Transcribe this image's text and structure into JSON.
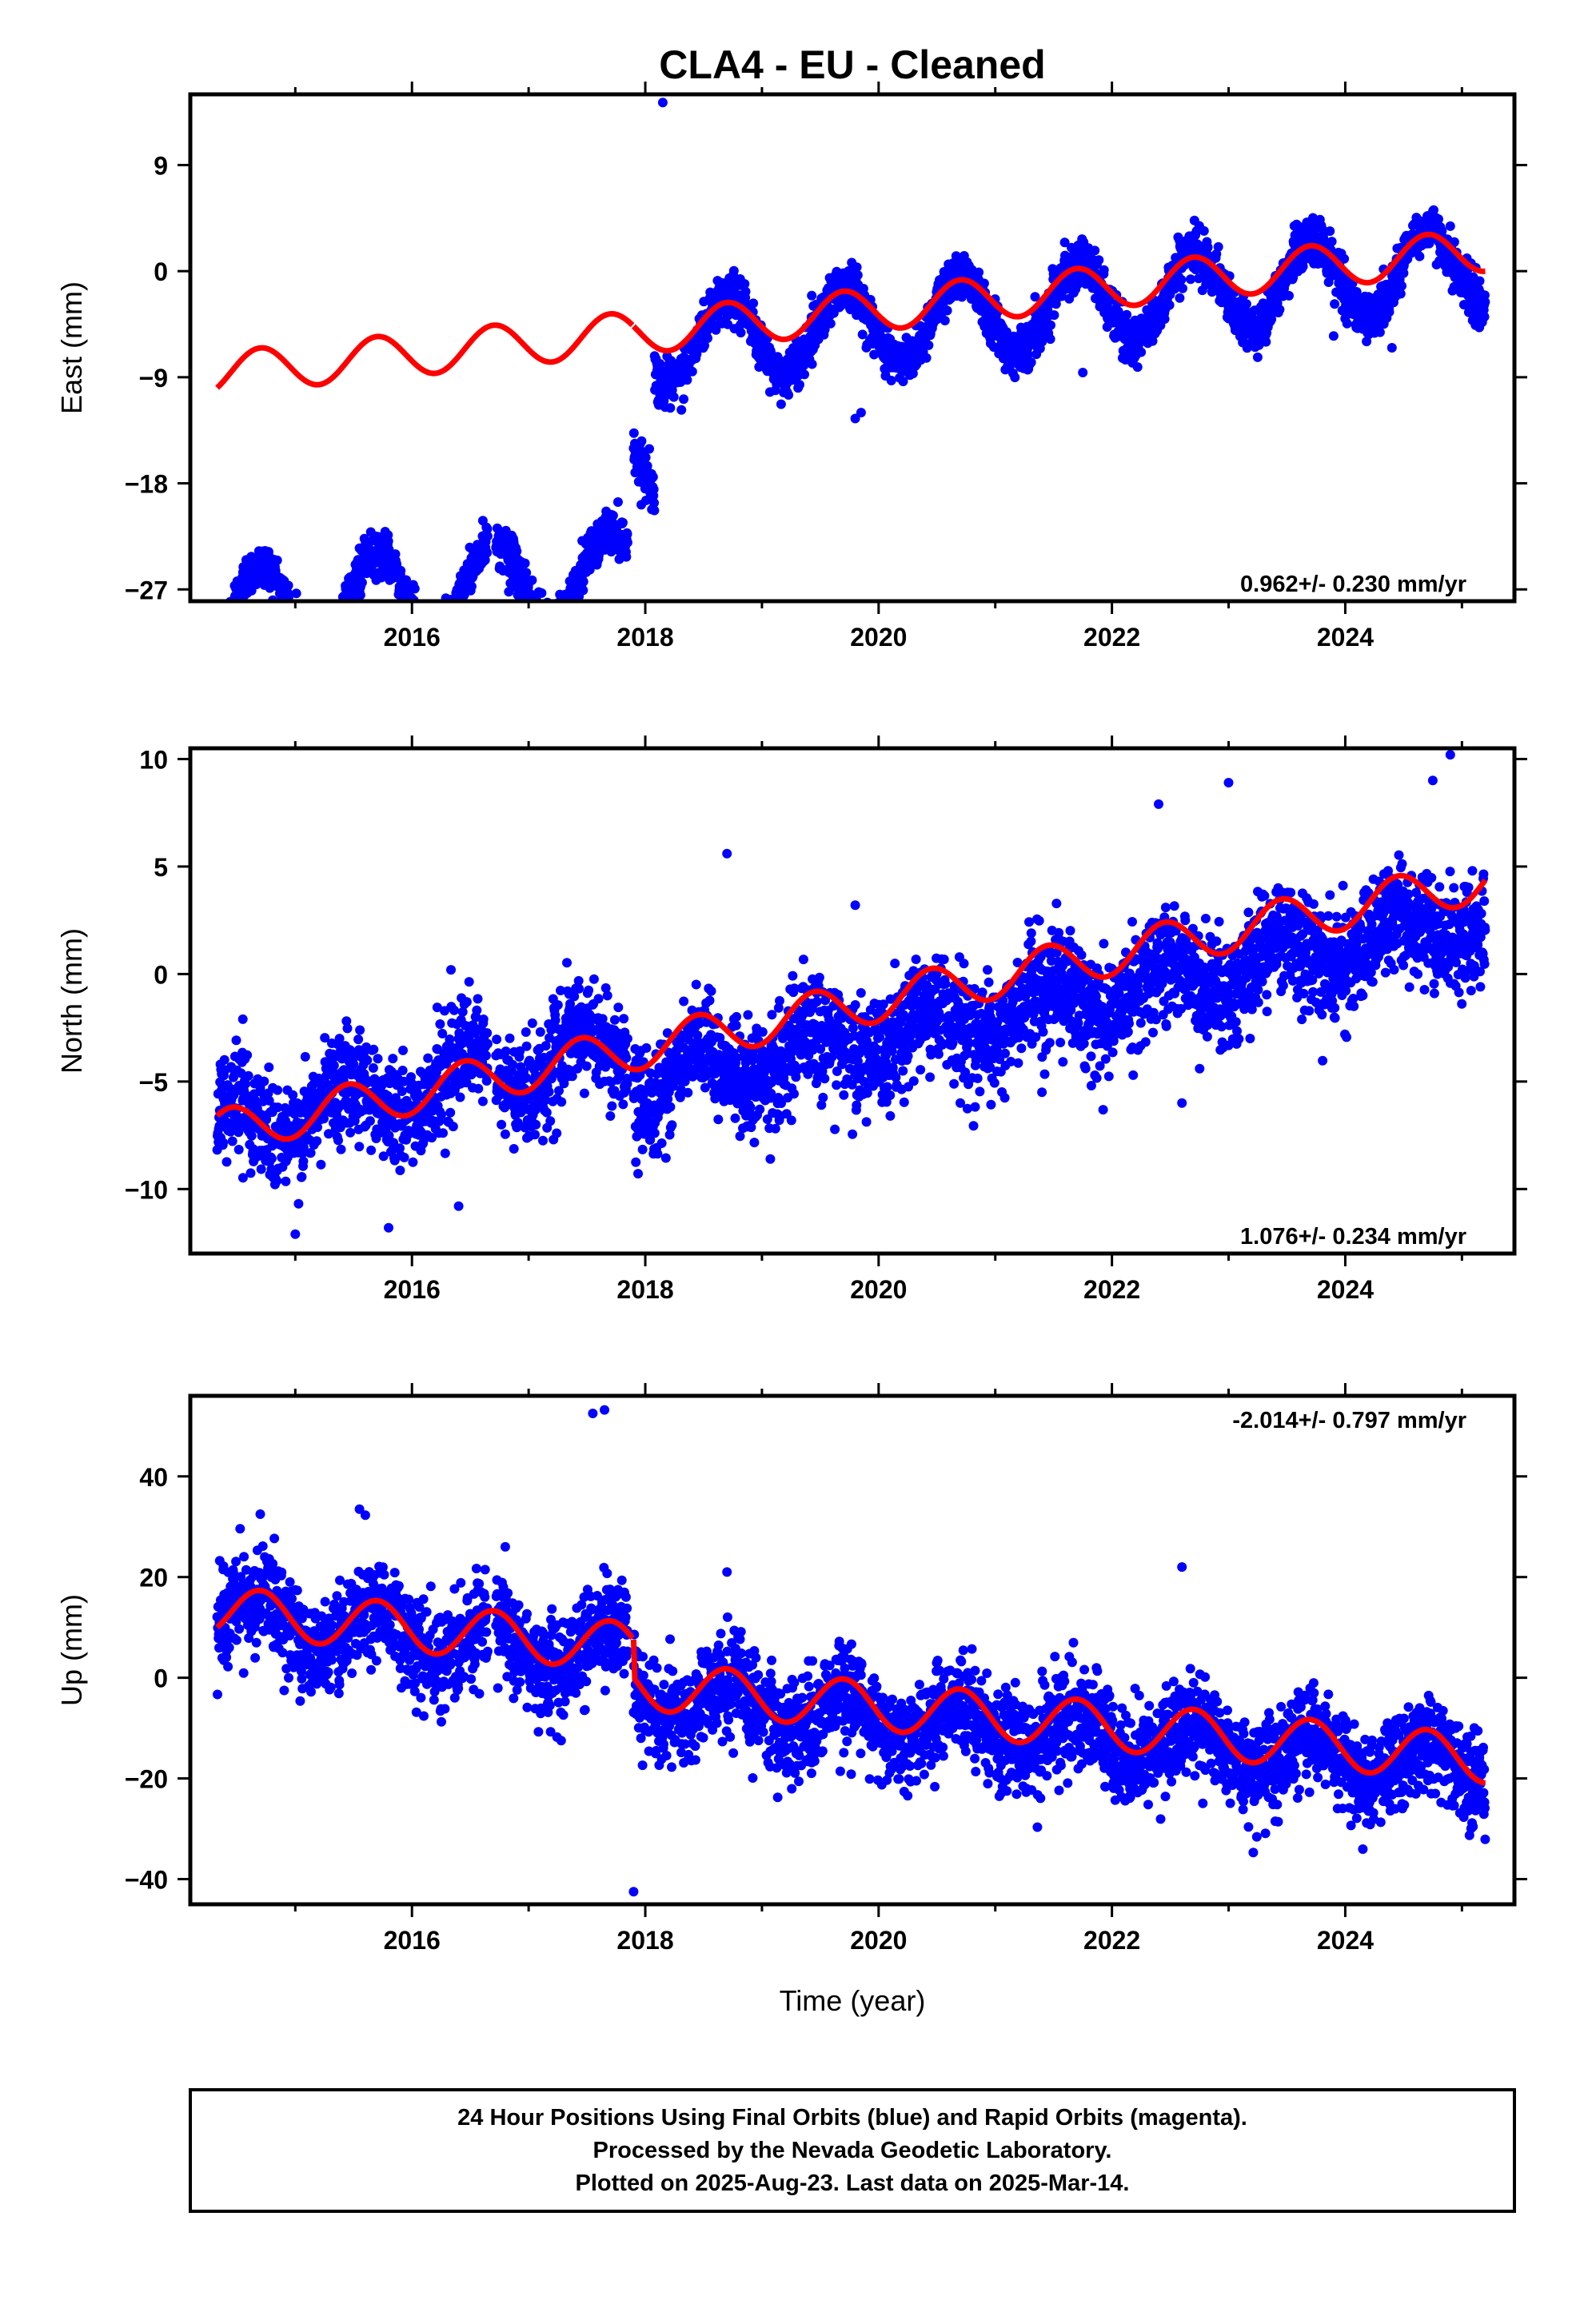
{
  "title": "CLA4  - EU - Cleaned",
  "colors": {
    "data": "#0000ff",
    "model": "#ff0000",
    "frame": "#000000"
  },
  "xlabel": "Time (year)",
  "xlim": [
    2014.1,
    2025.45
  ],
  "chart_data": [
    {
      "type": "scatter",
      "name": "east",
      "ylabel": "East (mm)",
      "ylim": [
        -28,
        15
      ],
      "yticks": [
        -27,
        -18,
        -9,
        0,
        9
      ],
      "xticks": [
        2016,
        2018,
        2020,
        2022,
        2024
      ],
      "rate_label": "0.962+/- 0.230 mm/yr",
      "grid": false,
      "data_series": {
        "segments": [
          {
            "t0": 2014.33,
            "t1": 2017.85,
            "offset": -28.8,
            "rate": 0.962,
            "amp": 3.5,
            "noise": 0.9
          },
          {
            "t0": 2017.9,
            "t1": 2018.08,
            "offset": -19.5,
            "rate": 0.962,
            "amp": 3.5,
            "noise": 0.9
          },
          {
            "t0": 2018.08,
            "t1": 2025.2,
            "offset": -9.9,
            "rate": 0.962,
            "amp": 3.5,
            "noise": 1.0
          }
        ],
        "gaps": [
          [
            2014.95,
            2015.0
          ],
          [
            2016.65,
            2016.72
          ],
          [
            2017.12,
            2017.16
          ]
        ],
        "outliers": [
          [
            2018.15,
            14.3
          ],
          [
            2016.87,
            -26.8
          ],
          [
            2016.83,
            -27.2
          ],
          [
            2019.85,
            -12.0
          ],
          [
            2019.8,
            -12.5
          ],
          [
            2021.75,
            -8.6
          ],
          [
            2014.85,
            -26.0
          ],
          [
            2015.55,
            -23.5
          ],
          [
            2018.45,
            -6.5
          ],
          [
            2024.4,
            -6.5
          ],
          [
            2023.9,
            -5.5
          ]
        ]
      },
      "model_series": {
        "t0": 2014.33,
        "t1": 2025.2,
        "base": -9.9,
        "rate": 0.962,
        "amp": 1.8,
        "phase": 0.45,
        "offsets": [
          [
            2017.9,
            0.0
          ]
        ]
      }
    },
    {
      "type": "scatter",
      "name": "north",
      "ylabel": "North (mm)",
      "ylim": [
        -13,
        10.5
      ],
      "yticks": [
        -10,
        -5,
        0,
        5,
        10
      ],
      "xticks": [
        2016,
        2018,
        2020,
        2022,
        2024
      ],
      "rate_label": "1.076+/- 0.234 mm/yr",
      "grid": false,
      "data_series": {
        "segments": [
          {
            "t0": 2014.33,
            "t1": 2017.85,
            "offset": -7.2,
            "rate": 1.076,
            "amp": 1.2,
            "noise": 1.2
          },
          {
            "t0": 2017.9,
            "t1": 2025.2,
            "offset": -9.1,
            "rate": 1.076,
            "amp": 1.0,
            "noise": 1.25
          }
        ],
        "gaps": [
          [
            2016.65,
            2016.72
          ]
        ],
        "outliers": [
          [
            2014.55,
            -2.1
          ],
          [
            2018.7,
            5.6
          ],
          [
            2019.8,
            3.2
          ],
          [
            2020.1,
            -6.6
          ],
          [
            2020.7,
            -6.0
          ],
          [
            2021.4,
            -5.5
          ],
          [
            2022.6,
            -6.0
          ],
          [
            2022.4,
            7.9
          ],
          [
            2023.0,
            8.9
          ],
          [
            2024.9,
            10.2
          ],
          [
            2024.75,
            9.0
          ],
          [
            2016.4,
            -10.8
          ],
          [
            2015.0,
            -12.1
          ],
          [
            2015.8,
            -11.8
          ]
        ]
      },
      "model_series": {
        "t0": 2014.33,
        "t1": 2025.2,
        "base": -6.6,
        "rate": 1.076,
        "amp": 1.0,
        "phase": 0.2,
        "offsets": []
      }
    },
    {
      "type": "scatter",
      "name": "up",
      "ylabel": "Up (mm)",
      "ylim": [
        -45,
        56
      ],
      "yticks": [
        -40,
        -20,
        0,
        20,
        40
      ],
      "xticks": [
        2016,
        2018,
        2020,
        2022,
        2024
      ],
      "rate_label": "-2.014+/- 0.797 mm/yr",
      "grid": false,
      "data_series": {
        "segments": [
          {
            "t0": 2014.33,
            "t1": 2017.85,
            "offset": 12.0,
            "rate": -2.014,
            "amp": 5.0,
            "noise": 4.8
          },
          {
            "t0": 2017.9,
            "t1": 2025.2,
            "offset": 3.6,
            "rate": -2.014,
            "amp": 4.0,
            "noise": 4.8
          }
        ],
        "gaps": [
          [
            2016.65,
            2016.72
          ]
        ],
        "outliers": [
          [
            2017.55,
            52.5
          ],
          [
            2017.65,
            53.2
          ],
          [
            2017.9,
            -42.5
          ],
          [
            2015.55,
            33.5
          ],
          [
            2015.6,
            32.3
          ],
          [
            2014.7,
            32.5
          ],
          [
            2016.8,
            26.0
          ],
          [
            2018.7,
            21.0
          ],
          [
            2022.6,
            22.0
          ],
          [
            2023.4,
            -28.5
          ],
          [
            2021.1,
            -22.5
          ],
          [
            2024.2,
            -26.5
          ],
          [
            2019.3,
            -17.5
          ]
        ]
      },
      "model_series": {
        "t0": 2014.33,
        "t1": 2025.2,
        "base": 10.0,
        "rate": -2.014,
        "amp": 4.8,
        "phase": 0.45,
        "offsets": [
          [
            2017.9,
            -7.5
          ]
        ]
      }
    }
  ],
  "footer": {
    "line1": "24 Hour Positions Using Final Orbits (blue) and Rapid Orbits (magenta).",
    "line2": "Processed by the Nevada Geodetic Laboratory.",
    "line3": "Plotted on 2025-Aug-23. Last data on 2025-Mar-14."
  }
}
